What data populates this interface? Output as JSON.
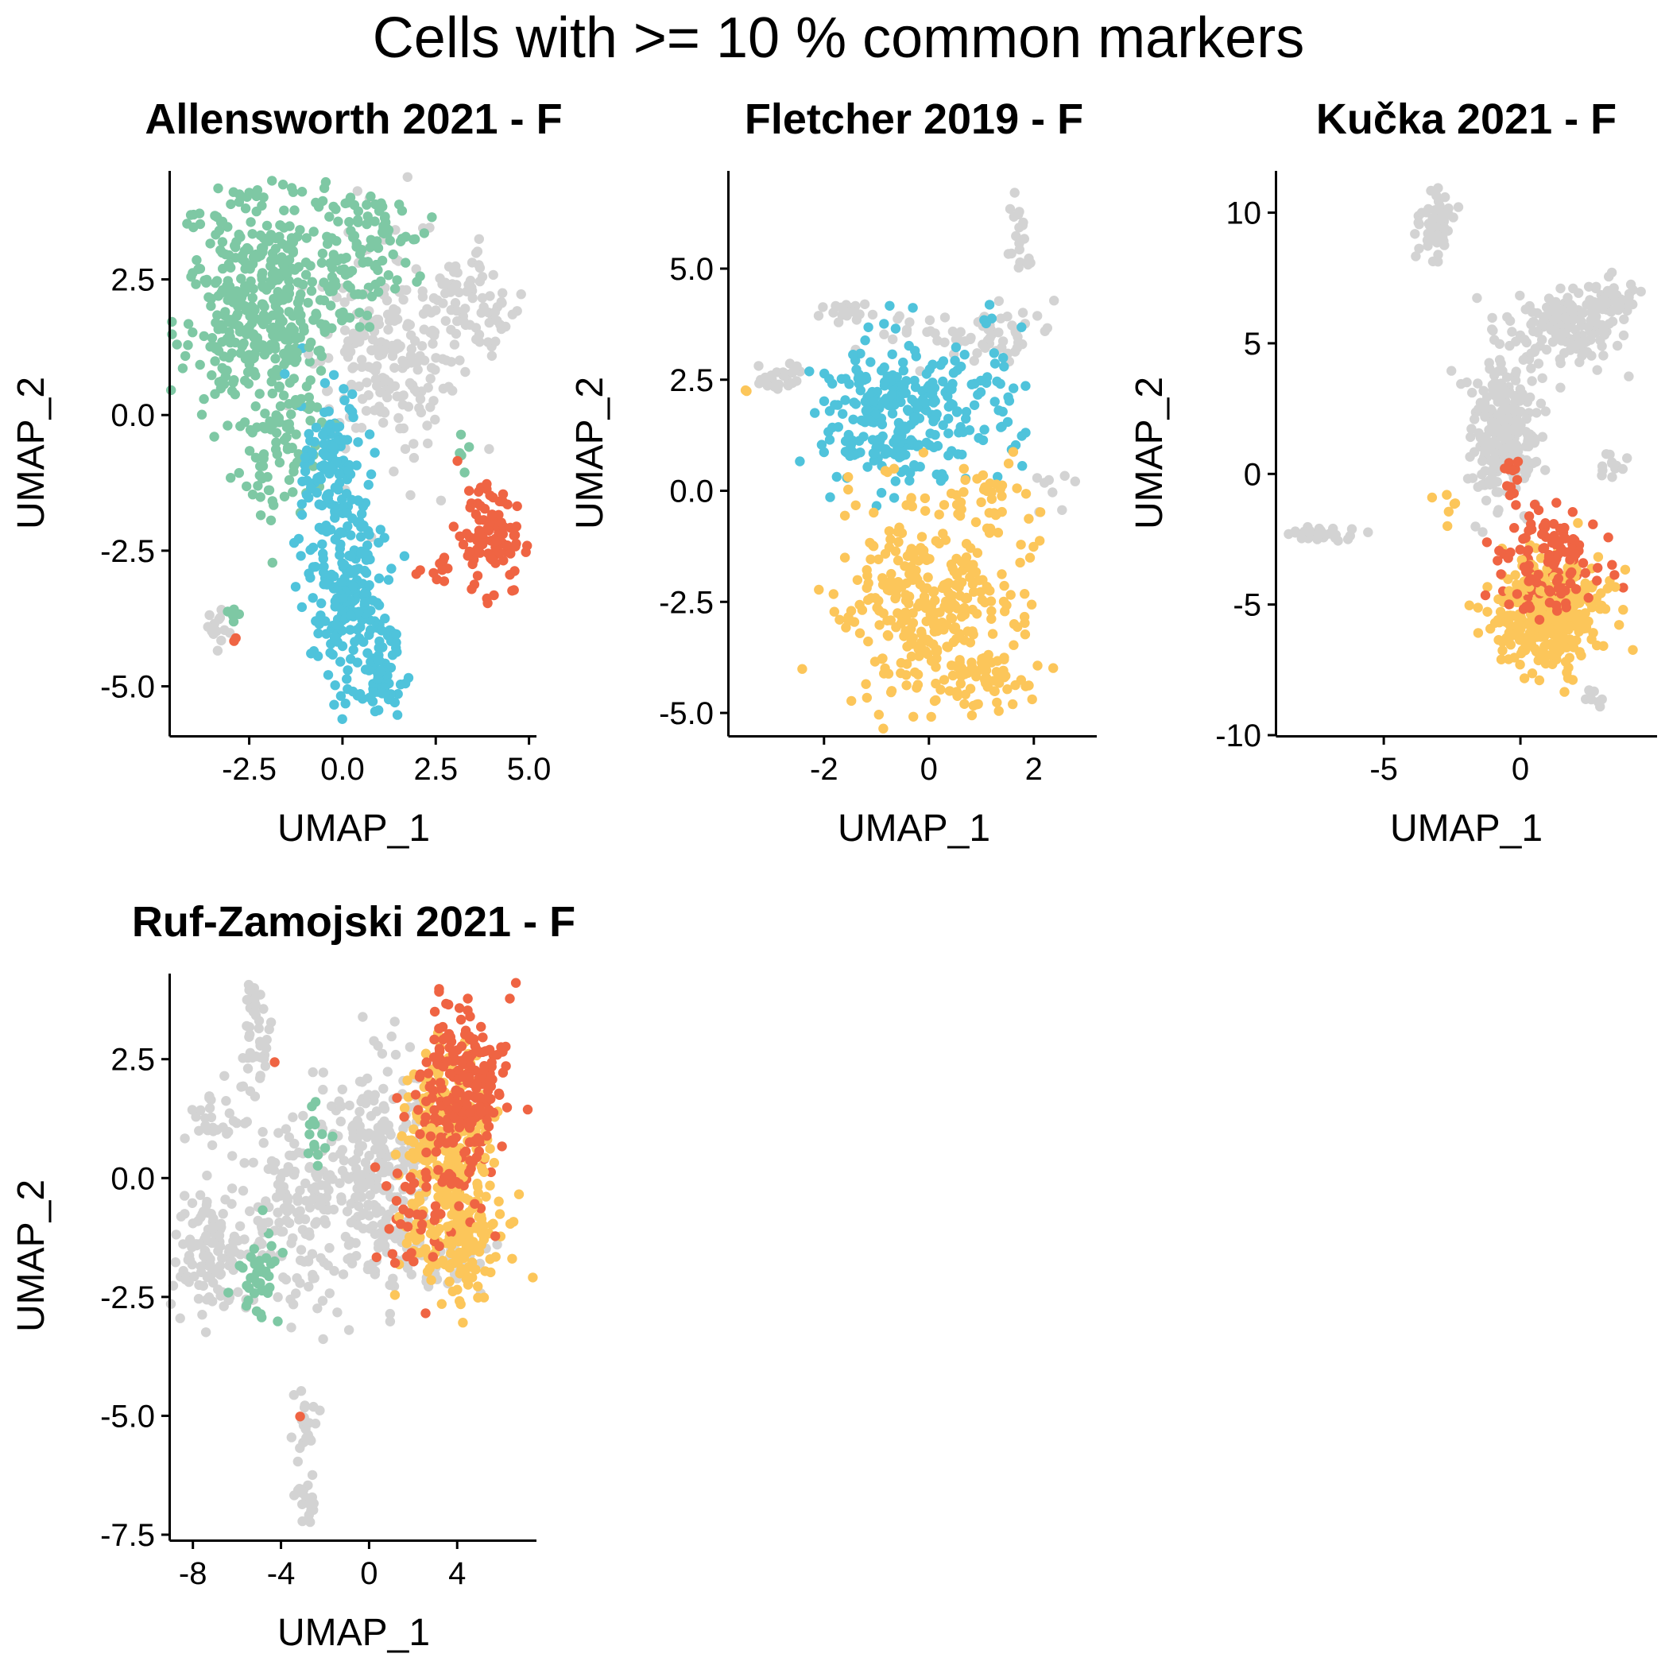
{
  "title": "Cells with >=  10 % common markers",
  "colors": {
    "grey": "#D3D3D3",
    "green": "#7EC8A4",
    "blue": "#4FC3DB",
    "red": "#EF6443",
    "yellow": "#FCC65A"
  },
  "chart_data": [
    {
      "type": "scatter",
      "title": "Allensworth 2021 - F",
      "xlabel": "UMAP_1",
      "ylabel": "UMAP_2",
      "xlim": [
        -4.6,
        5.2
      ],
      "ylim": [
        -5.9,
        4.5
      ],
      "xticks": [
        -2.5,
        0.0,
        2.5,
        5.0
      ],
      "xtick_labels": [
        "-2.5",
        "0.0",
        "2.5",
        "5.0"
      ],
      "yticks": [
        -5.0,
        -2.5,
        0.0,
        2.5
      ],
      "ytick_labels": [
        "-5.0",
        "-2.5",
        "0.0",
        "2.5"
      ],
      "grid": false,
      "legend": "none",
      "cluster_legend": [
        "grey",
        "green",
        "blue",
        "red"
      ],
      "clusters": [
        {
          "color": "green",
          "cx": -2.2,
          "cy": 1.9,
          "sx": 1.2,
          "sy": 1.3,
          "n": 420
        },
        {
          "color": "green",
          "cx": 0.6,
          "cy": 3.0,
          "sx": 0.9,
          "sy": 0.7,
          "n": 110
        },
        {
          "color": "green",
          "cx": -1.6,
          "cy": -0.8,
          "sx": 0.7,
          "sy": 0.8,
          "n": 60
        },
        {
          "color": "grey",
          "cx": 1.3,
          "cy": 1.2,
          "sx": 1.1,
          "sy": 1.2,
          "n": 210
        },
        {
          "color": "grey",
          "cx": 3.5,
          "cy": 2.1,
          "sx": 0.6,
          "sy": 0.5,
          "n": 70
        },
        {
          "color": "grey",
          "cx": -3.3,
          "cy": -3.95,
          "sx": 0.25,
          "sy": 0.2,
          "n": 14
        },
        {
          "color": "green",
          "cx": -3.0,
          "cy": -3.7,
          "sx": 0.2,
          "sy": 0.2,
          "n": 6
        },
        {
          "color": "blue",
          "cx": -0.3,
          "cy": -1.0,
          "sx": 0.5,
          "sy": 1.0,
          "n": 120
        },
        {
          "color": "blue",
          "cx": 0.3,
          "cy": -3.4,
          "sx": 0.6,
          "sy": 1.0,
          "n": 200
        },
        {
          "color": "blue",
          "cx": 1.1,
          "cy": -4.6,
          "sx": 0.35,
          "sy": 0.5,
          "n": 60
        },
        {
          "color": "red",
          "cx": 4.0,
          "cy": -2.2,
          "sx": 0.5,
          "sy": 0.55,
          "n": 95
        },
        {
          "color": "red",
          "cx": 2.6,
          "cy": -2.9,
          "sx": 0.3,
          "sy": 0.2,
          "n": 10
        },
        {
          "color": "green",
          "cx": 3.2,
          "cy": -0.6,
          "sx": 0.2,
          "sy": 0.3,
          "n": 5
        },
        {
          "color": "red",
          "cx": -2.8,
          "cy": -4.1,
          "sx": 0.1,
          "sy": 0.1,
          "n": 2
        }
      ]
    },
    {
      "type": "scatter",
      "title": "Fletcher 2019 - F",
      "xlabel": "UMAP_1",
      "ylabel": "UMAP_2",
      "xlim": [
        -3.8,
        3.2
      ],
      "ylim": [
        -5.5,
        7.2
      ],
      "xticks": [
        -2,
        0,
        2
      ],
      "xtick_labels": [
        "-2",
        "0",
        "2"
      ],
      "yticks": [
        -5.0,
        -2.5,
        0.0,
        2.5,
        5.0
      ],
      "ytick_labels": [
        "-5.0",
        "-2.5",
        "0.0",
        "2.5",
        "5.0"
      ],
      "grid": false,
      "legend": "none",
      "cluster_legend": [
        "grey",
        "blue",
        "yellow"
      ],
      "clusters": [
        {
          "color": "grey",
          "cx": 1.7,
          "cy": 5.7,
          "sx": 0.15,
          "sy": 0.6,
          "n": 20
        },
        {
          "color": "grey",
          "cx": 1.5,
          "cy": 3.6,
          "sx": 0.6,
          "sy": 0.4,
          "n": 40
        },
        {
          "color": "grey",
          "cx": -1.5,
          "cy": 4.1,
          "sx": 0.3,
          "sy": 0.2,
          "n": 20
        },
        {
          "color": "grey",
          "cx": -2.9,
          "cy": 2.6,
          "sx": 0.45,
          "sy": 0.2,
          "n": 25
        },
        {
          "color": "grey",
          "cx": 0.0,
          "cy": 3.4,
          "sx": 0.8,
          "sy": 0.3,
          "n": 25
        },
        {
          "color": "grey",
          "cx": 2.5,
          "cy": -0.1,
          "sx": 0.3,
          "sy": 0.4,
          "n": 8
        },
        {
          "color": "blue",
          "cx": -0.6,
          "cy": 1.7,
          "sx": 0.85,
          "sy": 1.0,
          "n": 260
        },
        {
          "color": "blue",
          "cx": 1.2,
          "cy": 2.2,
          "sx": 0.4,
          "sy": 0.9,
          "n": 40
        },
        {
          "color": "yellow",
          "cx": 0.1,
          "cy": -2.4,
          "sx": 1.0,
          "sy": 1.3,
          "n": 330
        },
        {
          "color": "yellow",
          "cx": 1.2,
          "cy": -4.2,
          "sx": 0.6,
          "sy": 0.4,
          "n": 50
        },
        {
          "color": "yellow",
          "cx": 1.0,
          "cy": -0.2,
          "sx": 0.6,
          "sy": 0.3,
          "n": 25
        },
        {
          "color": "yellow",
          "cx": -3.5,
          "cy": 2.3,
          "sx": 0.05,
          "sy": 0.05,
          "n": 2
        }
      ]
    },
    {
      "type": "scatter",
      "title": "Kučka 2021 - F",
      "xlabel": "UMAP_1",
      "ylabel": "UMAP_2",
      "xlim": [
        -8.9,
        5.0
      ],
      "ylim": [
        -10.0,
        11.6
      ],
      "xticks": [
        -5,
        0
      ],
      "xtick_labels": [
        "-5",
        "0"
      ],
      "yticks": [
        -10,
        -5,
        0,
        5,
        10
      ],
      "ytick_labels": [
        "-10",
        "-5",
        "0",
        "5",
        "10"
      ],
      "grid": false,
      "legend": "none",
      "cluster_legend": [
        "grey",
        "red",
        "yellow"
      ],
      "clusters": [
        {
          "color": "grey",
          "cx": -3.1,
          "cy": 9.4,
          "sx": 0.4,
          "sy": 0.7,
          "n": 55
        },
        {
          "color": "grey",
          "cx": -7.2,
          "cy": -2.3,
          "sx": 0.8,
          "sy": 0.15,
          "n": 30
        },
        {
          "color": "grey",
          "cx": 1.6,
          "cy": 5.7,
          "sx": 1.1,
          "sy": 0.9,
          "n": 160
        },
        {
          "color": "grey",
          "cx": 3.3,
          "cy": 6.6,
          "sx": 0.6,
          "sy": 0.4,
          "n": 40
        },
        {
          "color": "grey",
          "cx": -0.6,
          "cy": 1.7,
          "sx": 0.7,
          "sy": 1.8,
          "n": 240
        },
        {
          "color": "grey",
          "cx": 3.3,
          "cy": 0.4,
          "sx": 0.3,
          "sy": 0.3,
          "n": 12
        },
        {
          "color": "grey",
          "cx": 2.7,
          "cy": -8.5,
          "sx": 0.25,
          "sy": 0.3,
          "n": 8
        },
        {
          "color": "red",
          "cx": 1.1,
          "cy": -3.6,
          "sx": 1.1,
          "sy": 1.2,
          "n": 130
        },
        {
          "color": "yellow",
          "cx": 1.1,
          "cy": -5.3,
          "sx": 1.2,
          "sy": 1.2,
          "n": 380
        },
        {
          "color": "red",
          "cx": -0.3,
          "cy": -0.2,
          "sx": 0.3,
          "sy": 0.6,
          "n": 12
        },
        {
          "color": "yellow",
          "cx": -2.5,
          "cy": -1.2,
          "sx": 0.3,
          "sy": 0.5,
          "n": 6
        }
      ]
    },
    {
      "type": "scatter",
      "title": "Ruf-Zamojski 2021 - F",
      "xlabel": "UMAP_1",
      "ylabel": "UMAP_2",
      "xlim": [
        -9.0,
        7.6
      ],
      "ylim": [
        -7.6,
        4.3
      ],
      "xticks": [
        -8,
        -4,
        0,
        4
      ],
      "xtick_labels": [
        "-8",
        "-4",
        "0",
        "4"
      ],
      "yticks": [
        -7.5,
        -5.0,
        -2.5,
        0.0,
        2.5
      ],
      "ytick_labels": [
        "-7.5",
        "-5.0",
        "-2.5",
        "0.0",
        "2.5"
      ],
      "grid": false,
      "legend": "none",
      "cluster_legend": [
        "grey",
        "green",
        "red",
        "yellow"
      ],
      "clusters": [
        {
          "color": "grey",
          "cx": -5.1,
          "cy": 3.0,
          "sx": 0.4,
          "sy": 0.8,
          "n": 45
        },
        {
          "color": "grey",
          "cx": -7.0,
          "cy": 1.4,
          "sx": 0.7,
          "sy": 0.4,
          "n": 25
        },
        {
          "color": "grey",
          "cx": -7.2,
          "cy": -1.5,
          "sx": 0.9,
          "sy": 0.8,
          "n": 130
        },
        {
          "color": "grey",
          "cx": -3.2,
          "cy": -0.8,
          "sx": 1.6,
          "sy": 1.3,
          "n": 170
        },
        {
          "color": "grey",
          "cx": 0.5,
          "cy": 0.2,
          "sx": 1.3,
          "sy": 1.3,
          "n": 230
        },
        {
          "color": "grey",
          "cx": -3.0,
          "cy": -5.2,
          "sx": 0.4,
          "sy": 0.4,
          "n": 22
        },
        {
          "color": "grey",
          "cx": -2.9,
          "cy": -6.8,
          "sx": 0.35,
          "sy": 0.3,
          "n": 20
        },
        {
          "color": "grey",
          "cx": 3.0,
          "cy": -1.7,
          "sx": 1.2,
          "sy": 0.5,
          "n": 45
        },
        {
          "color": "green",
          "cx": -5.2,
          "cy": -2.1,
          "sx": 0.6,
          "sy": 0.5,
          "n": 40
        },
        {
          "color": "green",
          "cx": -2.4,
          "cy": 0.6,
          "sx": 0.4,
          "sy": 0.6,
          "n": 14
        },
        {
          "color": "red",
          "cx": 4.3,
          "cy": 1.7,
          "sx": 1.1,
          "sy": 1.1,
          "n": 250
        },
        {
          "color": "yellow",
          "cx": 3.6,
          "cy": 1.0,
          "sx": 1.1,
          "sy": 1.0,
          "n": 230
        },
        {
          "color": "yellow",
          "cx": 4.1,
          "cy": -1.2,
          "sx": 1.3,
          "sy": 0.7,
          "n": 170
        },
        {
          "color": "red",
          "cx": 2.0,
          "cy": -0.9,
          "sx": 1.0,
          "sy": 0.8,
          "n": 40
        },
        {
          "color": "red",
          "cx": -4.3,
          "cy": 2.5,
          "sx": 0.05,
          "sy": 0.05,
          "n": 1
        },
        {
          "color": "red",
          "cx": -3.1,
          "cy": -5.0,
          "sx": 0.05,
          "sy": 0.05,
          "n": 1
        }
      ]
    }
  ]
}
